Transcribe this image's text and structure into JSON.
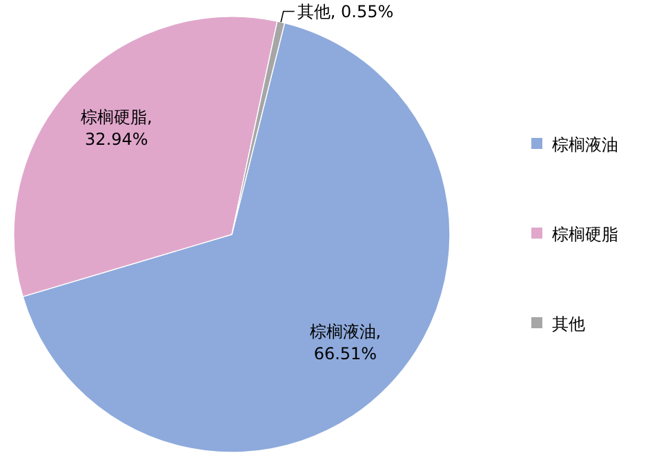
{
  "chart_data": {
    "type": "pie",
    "categories": [
      "棕榈液油",
      "棕榈硬脂",
      "其他"
    ],
    "values": [
      66.51,
      32.94,
      0.55
    ],
    "colors": [
      "#8eaadc",
      "#e0a7cb",
      "#a6a6a6"
    ],
    "value_labels": [
      "棕榈液油,\n66.51%",
      "棕榈硬脂,\n32.94%",
      "其他, 0.55%"
    ],
    "legend": "right"
  }
}
